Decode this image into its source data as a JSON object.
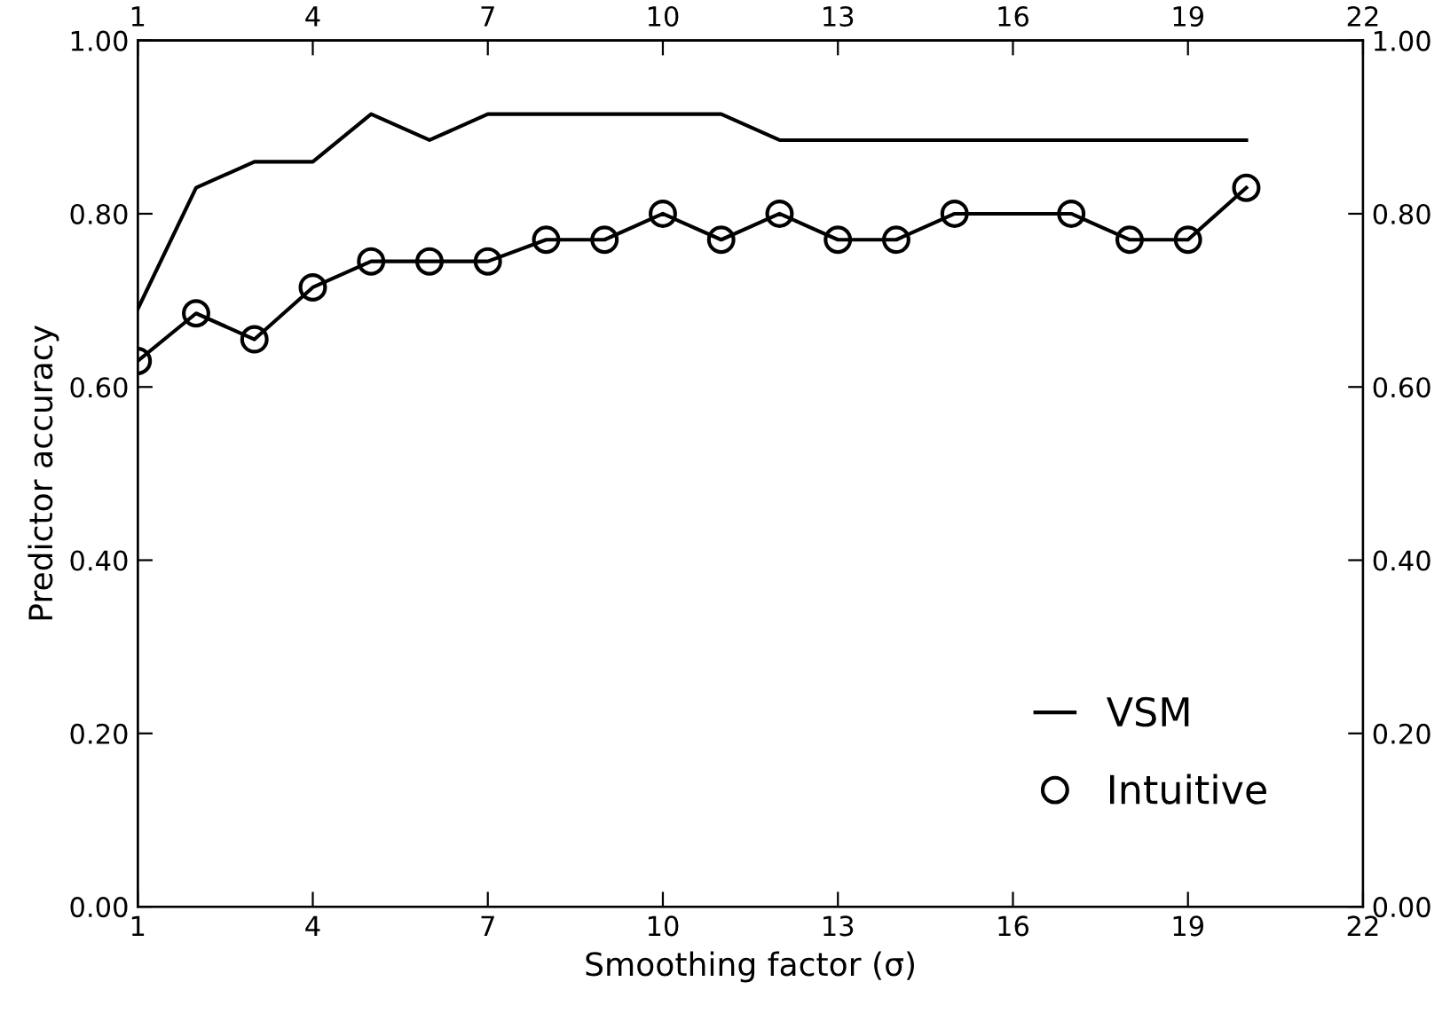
{
  "chart_data": {
    "type": "line",
    "xlabel": "Smoothing factor (σ)",
    "ylabel": "Predictor accuracy",
    "series": [
      {
        "name": "VSM",
        "color": "#000000",
        "marker": "none",
        "x": [
          1,
          2,
          3,
          4,
          5,
          6,
          7,
          8,
          9,
          10,
          11,
          12,
          13,
          14,
          15,
          16,
          17,
          18,
          19,
          20
        ],
        "values": [
          0.69,
          0.83,
          0.86,
          0.86,
          0.915,
          0.885,
          0.915,
          0.915,
          0.915,
          0.915,
          0.915,
          0.885,
          0.885,
          0.885,
          0.885,
          0.885,
          0.885,
          0.885,
          0.885,
          0.885
        ]
      },
      {
        "name": "Intuitive",
        "color": "#000000",
        "marker": "circle",
        "x": [
          1,
          2,
          3,
          4,
          5,
          6,
          7,
          8,
          9,
          10,
          11,
          12,
          13,
          14,
          15,
          17,
          18,
          19,
          20
        ],
        "values": [
          0.63,
          0.685,
          0.655,
          0.715,
          0.745,
          0.745,
          0.745,
          0.77,
          0.77,
          0.8,
          0.77,
          0.8,
          0.77,
          0.77,
          0.8,
          0.8,
          0.77,
          0.77,
          0.83
        ]
      }
    ],
    "xlim": [
      1,
      22
    ],
    "xticks": [
      1,
      4,
      7,
      10,
      13,
      16,
      19,
      22
    ],
    "x2lim": [
      1,
      22
    ],
    "x2ticks": [
      1,
      4,
      7,
      10,
      13,
      16,
      19,
      22
    ],
    "ylim": [
      0,
      1
    ],
    "yticks": [
      {
        "value": 0,
        "label": "0.00"
      },
      {
        "value": 0.2,
        "label": "0.20"
      },
      {
        "value": 0.4,
        "label": "0.40"
      },
      {
        "value": 0.6,
        "label": "0.60"
      },
      {
        "value": 0.8,
        "label": "0.80"
      },
      {
        "value": 1,
        "label": "1.00"
      }
    ],
    "y2lim": [
      0,
      1
    ],
    "y2ticks": [
      {
        "value": 0,
        "label": "0.00"
      },
      {
        "value": 0.2,
        "label": "0.20"
      },
      {
        "value": 0.4,
        "label": "0.40"
      },
      {
        "value": 0.6,
        "label": "0.60"
      },
      {
        "value": 0.8,
        "label": "0.80"
      },
      {
        "value": 1,
        "label": "1.00"
      }
    ],
    "legend": "bottom right",
    "grid": false,
    "line_style": "solid"
  }
}
